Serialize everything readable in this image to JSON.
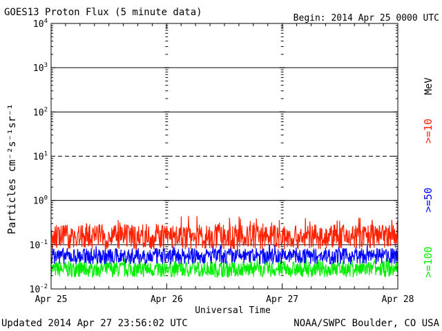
{
  "header": {
    "title": "GOES13 Proton Flux (5 minute data)",
    "begin": "Begin: 2014 Apr 25 0000 UTC"
  },
  "footer": {
    "updated": "Updated 2014 Apr 27 23:56:02 UTC",
    "credit": "NOAA/SWPC Boulder, CO USA"
  },
  "chart_data": {
    "type": "line",
    "title": "GOES13 Proton Flux (5 minute data)",
    "xlabel": "Universal Time",
    "ylabel": "Particles cm⁻²s⁻¹sr⁻¹",
    "y_scale": "log",
    "ylim": [
      0.01,
      10000
    ],
    "y_ticks": [
      {
        "base": "10",
        "exp": "4",
        "value": 10000
      },
      {
        "base": "10",
        "exp": "3",
        "value": 1000
      },
      {
        "base": "10",
        "exp": "2",
        "value": 100
      },
      {
        "base": "10",
        "exp": "1",
        "value": 10
      },
      {
        "base": "10",
        "exp": "0",
        "value": 1
      },
      {
        "base": "10",
        "exp": "-1",
        "value": 0.1
      },
      {
        "base": "10",
        "exp": "-2",
        "value": 0.01
      }
    ],
    "x_ticks": [
      "Apr 25",
      "Apr 26",
      "Apr 27",
      "Apr 28"
    ],
    "xlim_days": [
      0,
      3
    ],
    "threshold_value": 10,
    "grid": true,
    "energy_unit": "MeV",
    "series": [
      {
        "name": ">=10",
        "color": "#ff2000",
        "typical": 0.15,
        "range": [
          0.07,
          0.45
        ]
      },
      {
        "name": ">=50",
        "color": "#0000ff",
        "typical": 0.055,
        "range": [
          0.03,
          0.1
        ]
      },
      {
        "name": ">=100",
        "color": "#00ee00",
        "typical": 0.028,
        "range": [
          0.015,
          0.05
        ]
      }
    ]
  }
}
